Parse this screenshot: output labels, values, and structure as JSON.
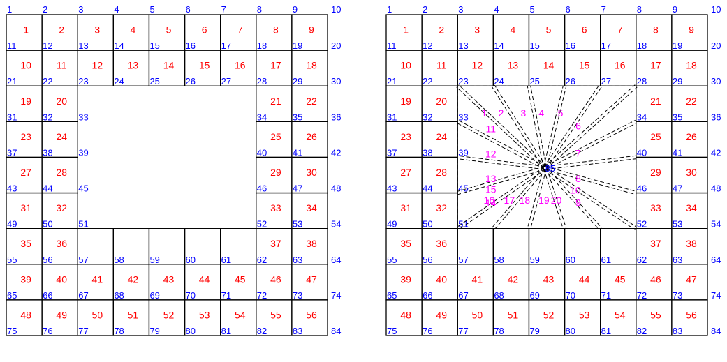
{
  "left_mesh": {
    "rows": [
      {
        "top": [
          "1",
          "2",
          "3",
          "4",
          "5",
          "6",
          "7",
          "8",
          "9",
          "10"
        ],
        "elems": [
          "1",
          "2",
          "3",
          "4",
          "5",
          "6",
          "7",
          "8",
          "9"
        ],
        "bottom": [
          "11",
          "12",
          "13",
          "14",
          "15",
          "16",
          "17",
          "18",
          "19",
          "20"
        ]
      },
      {
        "elems": [
          "10",
          "11",
          "12",
          "13",
          "14",
          "15",
          "16",
          "17",
          "18"
        ],
        "bottom": [
          "21",
          "22",
          "23",
          "24",
          "25",
          "26",
          "27",
          "28",
          "29",
          "30"
        ]
      },
      {
        "elems": [
          "19",
          "20",
          "",
          "",
          "",
          "",
          "",
          "21",
          "22"
        ],
        "bottom": [
          "31",
          "32",
          "33",
          "",
          "",
          "",
          "",
          "34",
          "35",
          "36"
        ]
      },
      {
        "elems": [
          "23",
          "24",
          "",
          "",
          "",
          "",
          "",
          "25",
          "26"
        ],
        "bottom": [
          "37",
          "38",
          "39",
          "",
          "",
          "",
          "",
          "40",
          "41",
          "42"
        ]
      },
      {
        "elems": [
          "27",
          "28",
          "",
          "",
          "",
          "",
          "",
          "29",
          "30"
        ],
        "bottom": [
          "43",
          "44",
          "45",
          "",
          "",
          "",
          "",
          "46",
          "47",
          "48"
        ]
      },
      {
        "elems": [
          "31",
          "32",
          "",
          "",
          "",
          "",
          "",
          "33",
          "34"
        ],
        "bottom": [
          "49",
          "50",
          "51",
          "",
          "",
          "",
          "",
          "52",
          "53",
          "54"
        ]
      },
      {
        "elems": [
          "35",
          "36",
          "",
          "",
          "",
          "",
          "",
          "37",
          "38"
        ],
        "bottom": [
          "55",
          "56",
          "57",
          "58",
          "59",
          "60",
          "61",
          "62",
          "63",
          "64"
        ]
      },
      {
        "elems": [
          "39",
          "40",
          "41",
          "42",
          "43",
          "44",
          "45",
          "46",
          "47"
        ],
        "bottom": [
          "65",
          "66",
          "67",
          "68",
          "69",
          "70",
          "71",
          "72",
          "73",
          "74"
        ]
      },
      {
        "elems": [
          "48",
          "49",
          "50",
          "51",
          "52",
          "53",
          "54",
          "55",
          "56"
        ],
        "bottom": [
          "75",
          "76",
          "77",
          "78",
          "79",
          "80",
          "81",
          "82",
          "83",
          "84"
        ]
      }
    ]
  },
  "right_mesh": {
    "center_node": "85",
    "triangles": [
      "1",
      "2",
      "3",
      "4",
      "5",
      "6",
      "7",
      "8",
      "9",
      "10",
      "11",
      "12",
      "13",
      "14",
      "15",
      "16",
      "17",
      "18",
      "19",
      "20"
    ]
  },
  "colors": {
    "node": "#0000ff",
    "element": "#ff0000",
    "triangle": "#ff00ff",
    "line": "#000000"
  }
}
